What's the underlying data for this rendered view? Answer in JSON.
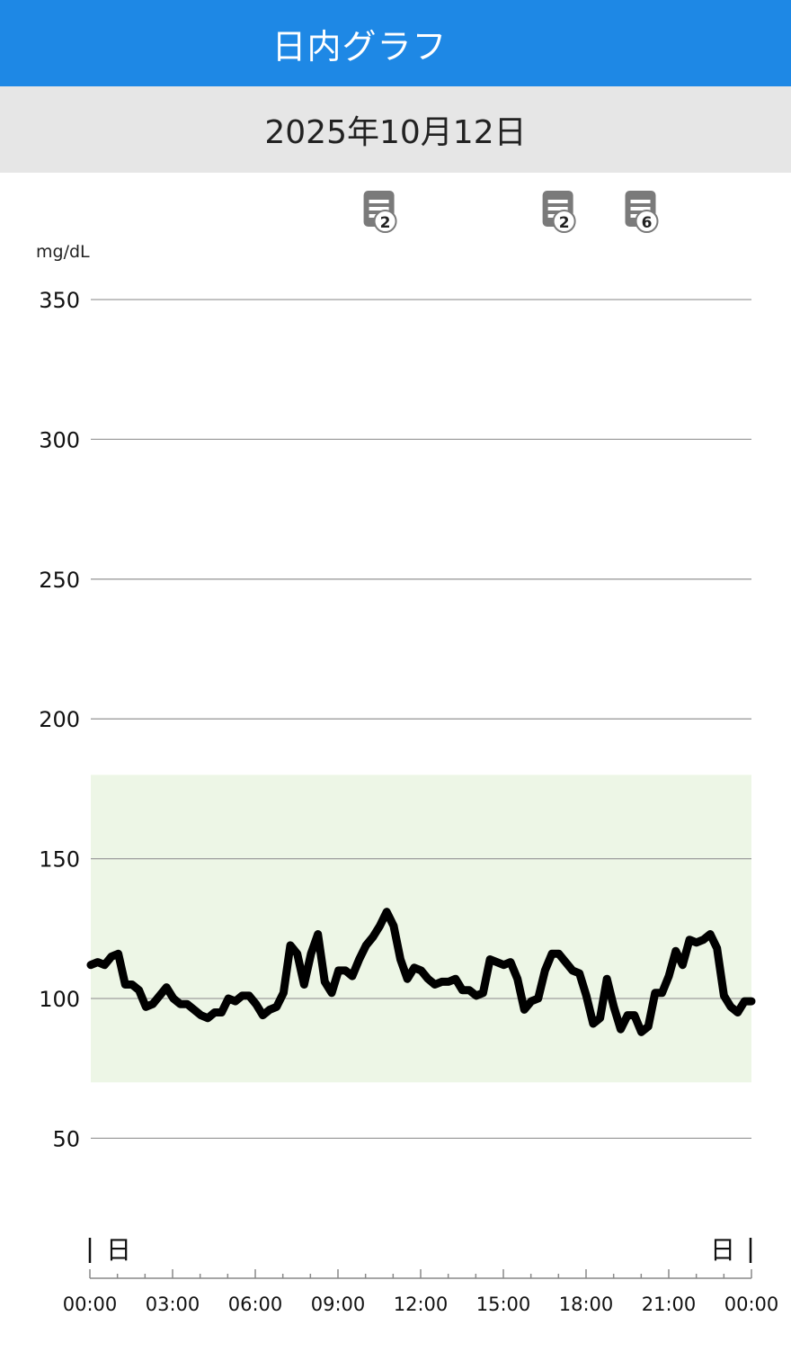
{
  "header": {
    "title": "日内グラフ"
  },
  "date_label": "2025年10月12日",
  "colors": {
    "header_bg": "#1e88e5",
    "date_bg": "#e6e6e6",
    "target_band": "#edf6e6",
    "line": "#000000",
    "grid": "#9e9e9e",
    "note_icon": "#7a7a7a"
  },
  "notes": [
    {
      "time": "10:30",
      "count": "2",
      "icon": "note-icon"
    },
    {
      "time": "17:00",
      "count": "2",
      "icon": "note-icon"
    },
    {
      "time": "20:00",
      "count": "6",
      "icon": "note-icon"
    }
  ],
  "chart_data": {
    "type": "line",
    "unit": "mg/dL",
    "ylim": [
      20,
      350
    ],
    "xlim": [
      "00:00",
      "24:00"
    ],
    "yticks": [
      50,
      100,
      150,
      200,
      250,
      300,
      350
    ],
    "xtick_labels": [
      "00:00",
      "03:00",
      "06:00",
      "09:00",
      "12:00",
      "15:00",
      "18:00",
      "21:00",
      "00:00"
    ],
    "target_range": [
      70,
      180
    ],
    "grid": true,
    "day_markers": {
      "start": "日",
      "end": "日"
    },
    "series": [
      {
        "x": [
          "00:00",
          "00:15",
          "00:30",
          "00:45",
          "01:00",
          "01:15",
          "01:30",
          "01:45",
          "02:00",
          "02:15",
          "02:30",
          "02:45",
          "03:00",
          "03:15",
          "03:30",
          "03:45",
          "04:00",
          "04:15",
          "04:30",
          "04:45",
          "05:00",
          "05:15",
          "05:30",
          "05:45",
          "06:00",
          "06:15",
          "06:30",
          "06:45",
          "07:00",
          "07:15",
          "07:30",
          "07:45",
          "08:00",
          "08:15",
          "08:30",
          "08:45",
          "09:00",
          "09:15",
          "09:30",
          "09:45",
          "10:00",
          "10:15",
          "10:30",
          "10:45",
          "11:00",
          "11:15",
          "11:30",
          "11:45",
          "12:00",
          "12:15",
          "12:30",
          "12:45",
          "13:00",
          "13:15",
          "13:30",
          "13:45",
          "14:00",
          "14:15",
          "14:30",
          "14:45",
          "15:00",
          "15:15",
          "15:30",
          "15:45",
          "16:00",
          "16:15",
          "16:30",
          "16:45",
          "17:00",
          "17:15",
          "17:30",
          "17:45",
          "18:00",
          "18:15",
          "18:30",
          "18:45",
          "19:00",
          "19:15",
          "19:30",
          "19:45",
          "20:00",
          "20:15",
          "20:30",
          "20:45",
          "21:00",
          "21:15",
          "21:30",
          "21:45",
          "22:00",
          "22:15",
          "22:30",
          "22:45",
          "23:00",
          "23:15",
          "23:30",
          "23:45",
          "24:00"
        ],
        "y": [
          112,
          113,
          112,
          115,
          116,
          105,
          105,
          103,
          97,
          98,
          101,
          104,
          100,
          98,
          98,
          96,
          94,
          93,
          95,
          95,
          100,
          99,
          101,
          101,
          98,
          94,
          96,
          97,
          102,
          119,
          116,
          105,
          116,
          123,
          106,
          102,
          110,
          110,
          108,
          114,
          119,
          122,
          126,
          131,
          126,
          114,
          107,
          111,
          110,
          107,
          105,
          106,
          106,
          107,
          103,
          103,
          101,
          102,
          114,
          113,
          112,
          113,
          107,
          96,
          99,
          100,
          110,
          116,
          116,
          113,
          110,
          109,
          101,
          91,
          93,
          107,
          97,
          89,
          94,
          94,
          88,
          90,
          102,
          102,
          108,
          117,
          112,
          121,
          120,
          121,
          123,
          118,
          101,
          97,
          95,
          99,
          99
        ]
      }
    ]
  }
}
